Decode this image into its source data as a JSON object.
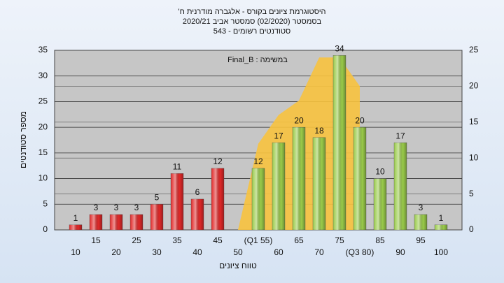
{
  "chart_data": {
    "type": "bar",
    "title": "היסטוגרמת ציונים בקורס - אלגברה מודרנית ח'",
    "subtitles": [
      "בסמסטר (02/2020) סמסטר אביב 2020/21",
      "סטודנטים רשומים - 543"
    ],
    "annotation": "במשימה : Final_B",
    "x_label": "טווח ציונים",
    "y_label": "מספר סטודנטים",
    "categories": [
      "10",
      "15",
      "20",
      "25",
      "30",
      "35",
      "40",
      "45",
      "50",
      "(Q1 55)",
      "60",
      "65",
      "70",
      "75",
      "(Q3 80)",
      "85",
      "90",
      "95",
      "100"
    ],
    "series": [
      {
        "type": "area",
        "axis": "y2",
        "color": "#f7c23e",
        "values": [
          null,
          null,
          null,
          null,
          null,
          null,
          null,
          null,
          0,
          12,
          16,
          18,
          24,
          24,
          20,
          null,
          null,
          null,
          null
        ]
      },
      {
        "type": "bar",
        "axis": "y",
        "values": [
          1,
          3,
          3,
          3,
          5,
          11,
          6,
          12,
          null,
          12,
          17,
          20,
          18,
          34,
          20,
          10,
          17,
          3,
          1
        ],
        "colors": [
          "#e02828",
          "#e02828",
          "#e02828",
          "#e02828",
          "#e02828",
          "#e02828",
          "#e02828",
          "#e02828",
          null,
          "#9acb4a",
          "#9acb4a",
          "#9acb4a",
          "#9acb4a",
          "#9acb4a",
          "#9acb4a",
          "#9acb4a",
          "#9acb4a",
          "#9acb4a",
          "#9acb4a"
        ]
      }
    ],
    "ylim": [
      0,
      35
    ],
    "yticks": [
      0,
      5,
      10,
      15,
      20,
      25,
      30,
      35
    ],
    "y2lim": [
      0,
      25
    ],
    "y2ticks": [
      0,
      5,
      10,
      15,
      20,
      25
    ],
    "grid": true
  }
}
